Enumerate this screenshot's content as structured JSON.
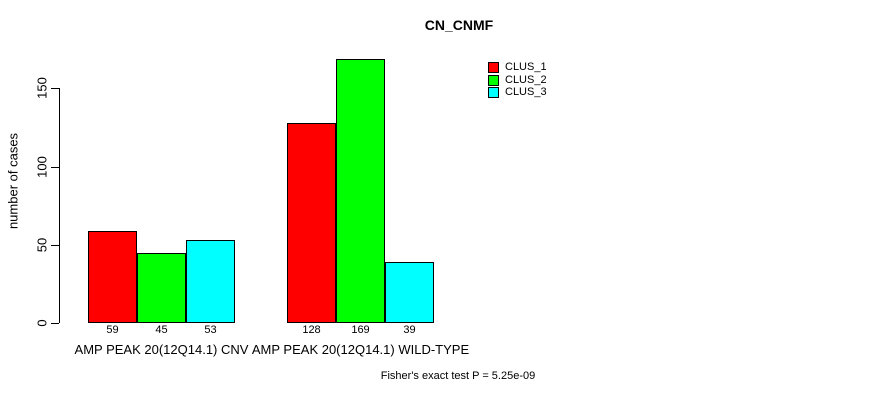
{
  "title": "CN_CNMF",
  "chart_data": {
    "type": "bar",
    "title": "CN_CNMF",
    "xlabel": "",
    "ylabel": "number of cases",
    "ylim": [
      0,
      170
    ],
    "yticks": [
      0,
      50,
      100,
      150
    ],
    "grid": false,
    "legend_position": "top-right",
    "bar_value_labels": true,
    "categories": [
      "AMP PEAK 20(12Q14.1) CNV",
      "AMP PEAK 20(12Q14.1) WILD-TYPE"
    ],
    "series": [
      {
        "name": "CLUS_1",
        "color": "#ff0000",
        "values": [
          59,
          128
        ]
      },
      {
        "name": "CLUS_2",
        "color": "#00ff00",
        "values": [
          45,
          169
        ]
      },
      {
        "name": "CLUS_3",
        "color": "#00ffff",
        "values": [
          53,
          39
        ]
      }
    ],
    "annotation": "Fisher's exact test P = 5.25e-09"
  },
  "colors": {
    "background": "#ffffff",
    "axis": "#000000",
    "bar_border": "#000000"
  }
}
